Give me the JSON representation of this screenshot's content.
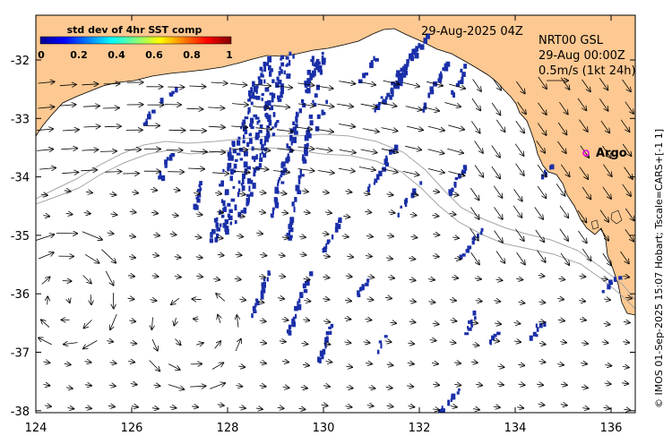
{
  "map": {
    "date_title": "29-Aug-2025 04Z",
    "colorbar": {
      "title": "std dev of 4hr SST comp",
      "ticks": [
        "0",
        "0.2",
        "0.4",
        "0.6",
        "0.8",
        "1"
      ]
    },
    "current_legend": {
      "line1": "NRT00 GSL",
      "line2": "29-Aug 00:00Z",
      "line3": "0.5m/s (1kt 24h)"
    },
    "argo_label": "Argo",
    "credit": "© IMOS 01-Sep-2025 15:07 Hobart; Tscale=CARS+[-1 1]",
    "x_ticks": [
      "124",
      "126",
      "128",
      "130",
      "132",
      "134",
      "136"
    ],
    "y_ticks": [
      "-32",
      "-33",
      "-34",
      "-35",
      "-36",
      "-37",
      "-38"
    ],
    "lon_range": [
      124,
      136.5
    ],
    "lat_range": [
      -38.1,
      -31.4
    ],
    "colors": {
      "land": "#fdc891",
      "ocean": "#ffffff",
      "sst_patch": "#1a2fa8",
      "argo_marker": "#e600e6",
      "bathymetry_contour": "#a6a6a6"
    }
  }
}
